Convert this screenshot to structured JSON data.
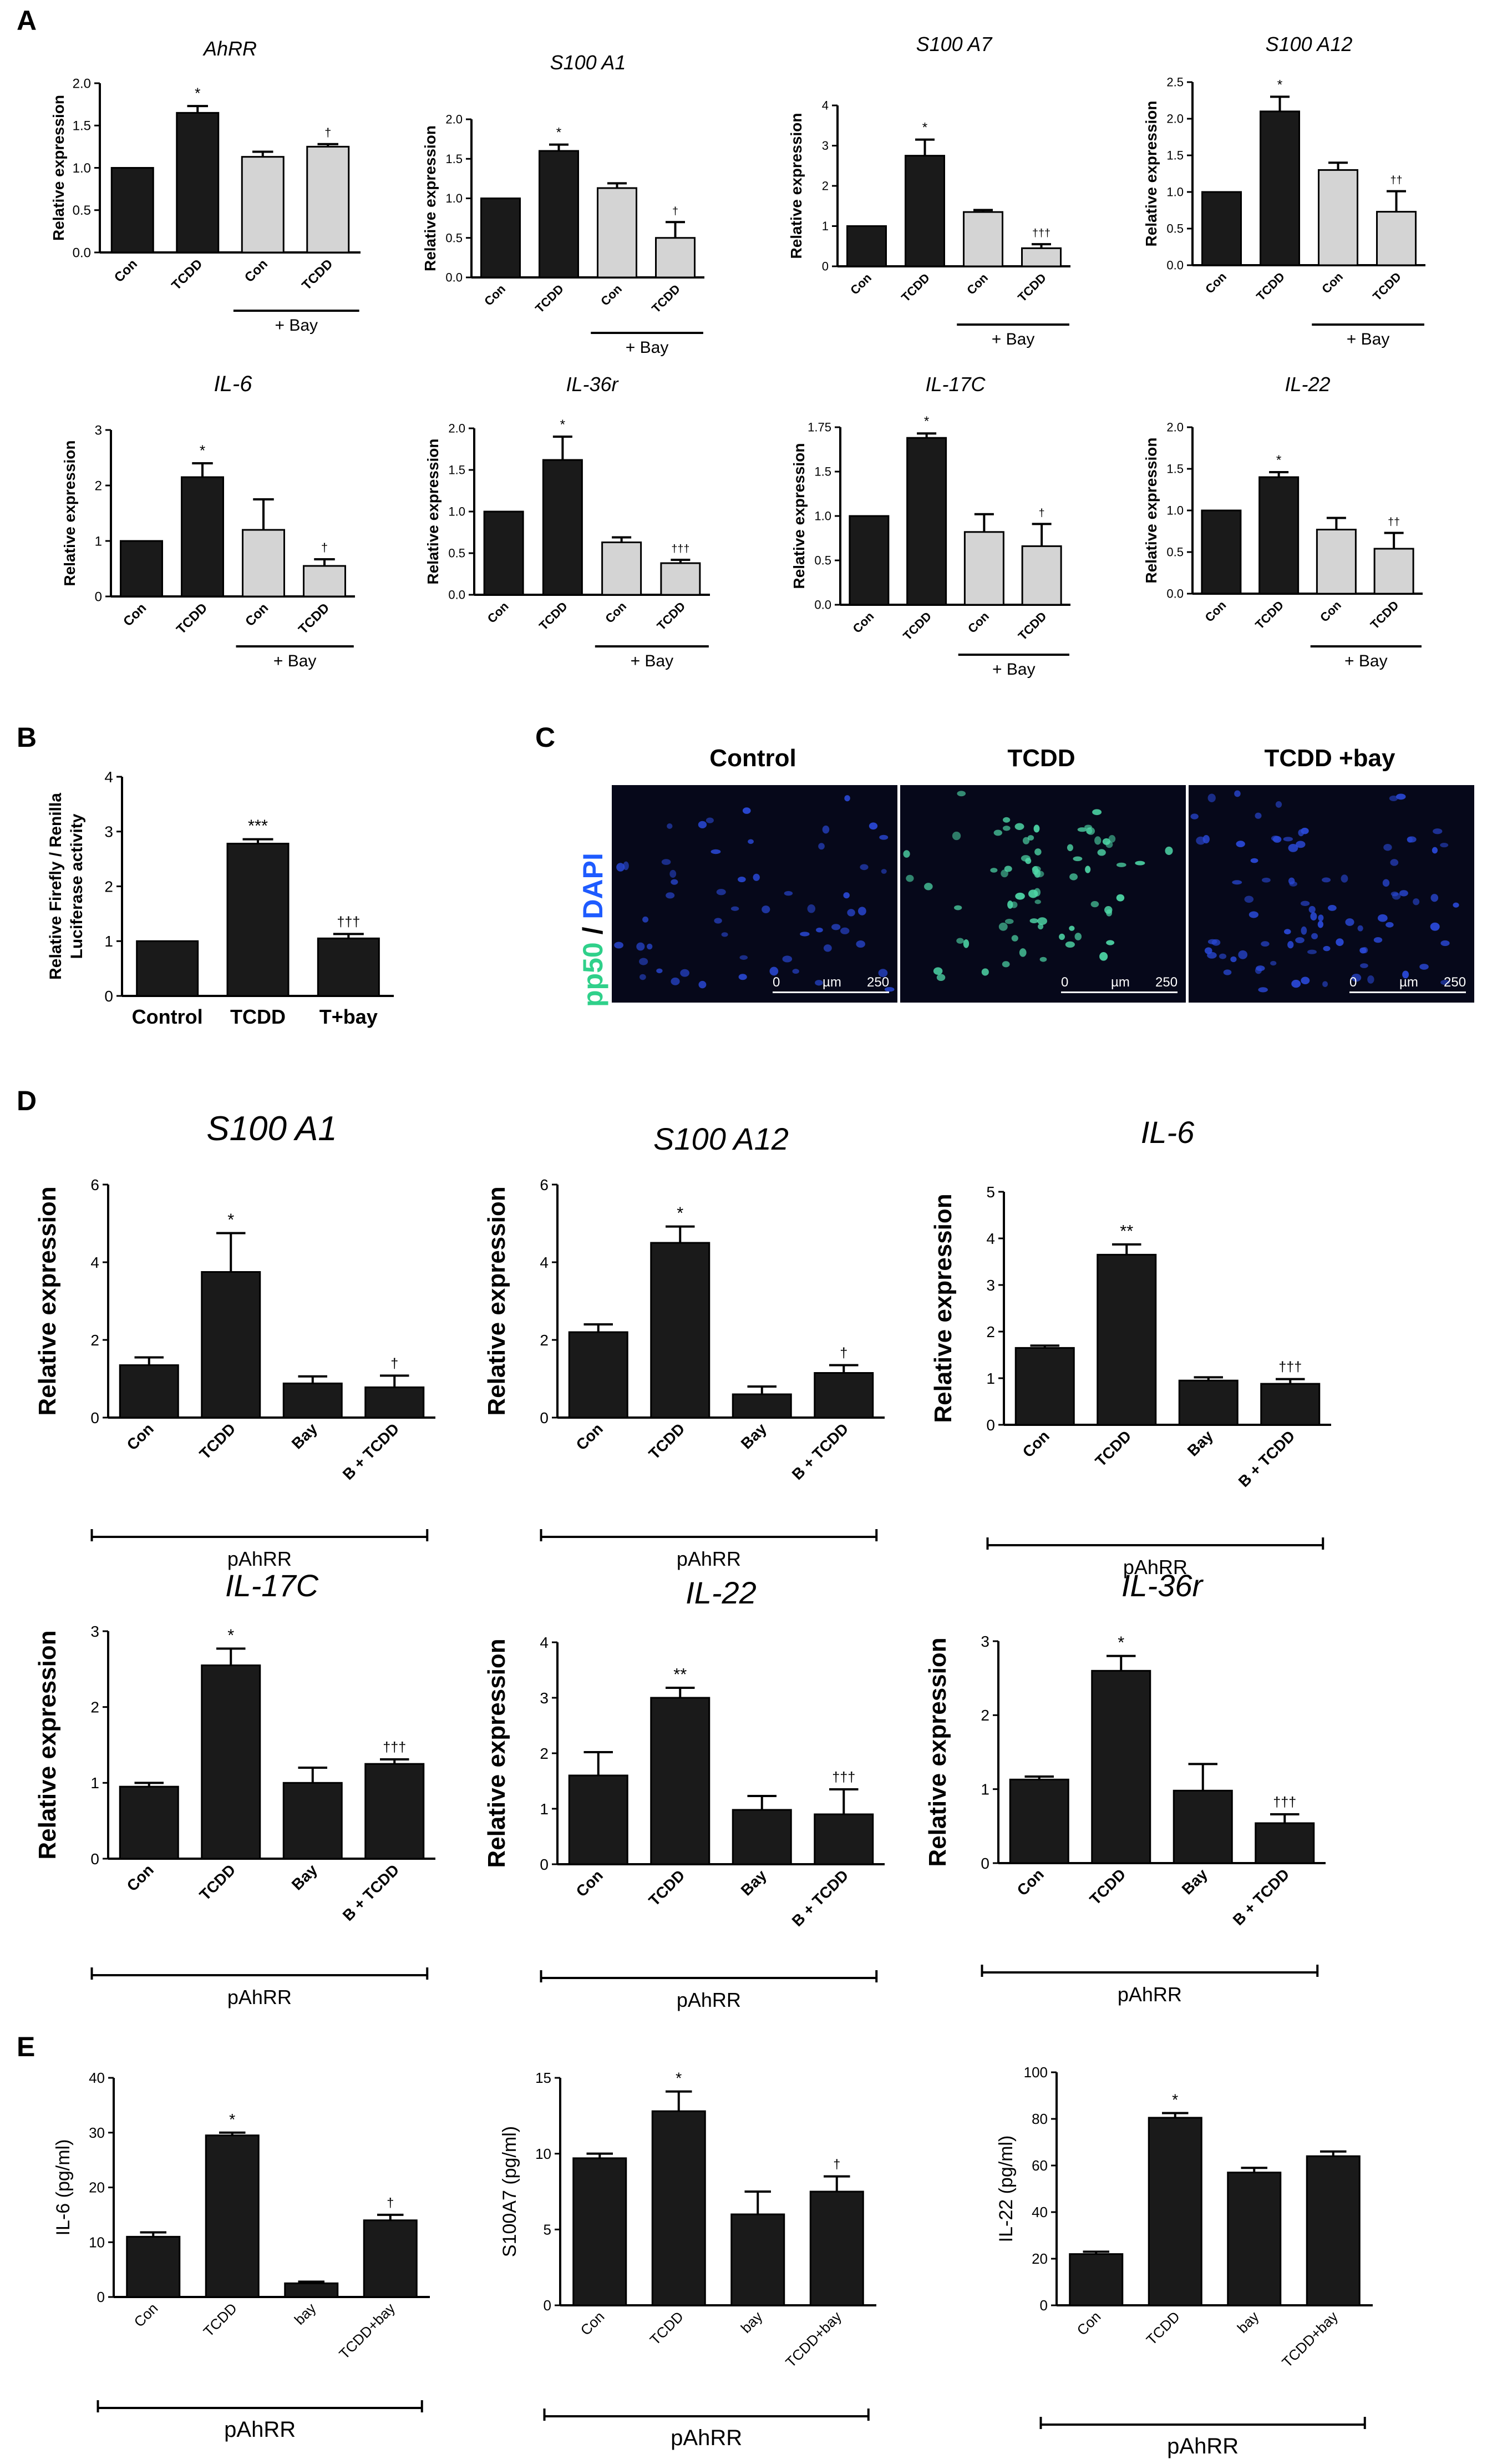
{
  "panel_letters": {
    "a": "A",
    "b": "B",
    "c": "C",
    "d": "D",
    "e": "E"
  },
  "panelC": {
    "ylabel_green": "pp50",
    "ylabel_slash": "/",
    "ylabel_blue": "DAPI",
    "titles": [
      "Control",
      "TCDD",
      "TCDD +bay"
    ],
    "scale": {
      "start": "0",
      "unit": "µm",
      "end": "250"
    }
  },
  "colors": {
    "dark_bar": "#1a1a1a",
    "light_bar": "#d4d4d4",
    "green": "#2fd08a",
    "blue": "#1e5bff"
  },
  "chart_data": [
    {
      "id": "A1",
      "type": "bar",
      "title": "AhRR",
      "title_italic": true,
      "ylabel": "Relative expression",
      "categories": [
        "Con",
        "TCDD",
        "Con",
        "TCDD"
      ],
      "values": [
        1.0,
        1.65,
        1.13,
        1.25
      ],
      "errors": [
        0,
        0.08,
        0.06,
        0.03
      ],
      "fills": [
        "dark",
        "dark",
        "light",
        "light"
      ],
      "annotations": [
        "",
        "*",
        "",
        "†"
      ],
      "ylim": [
        0,
        2
      ],
      "yticks": [
        "0.0",
        "0.5",
        "1.0",
        "1.5",
        "2.0"
      ],
      "group_label": "+ Bay",
      "group_range": [
        2,
        3
      ]
    },
    {
      "id": "A2",
      "type": "bar",
      "title": "S100 A1",
      "title_italic": true,
      "ylabel": "Relative expression",
      "categories": [
        "Con",
        "TCDD",
        "Con",
        "TCDD"
      ],
      "values": [
        1.0,
        1.6,
        1.13,
        0.5
      ],
      "errors": [
        0,
        0.08,
        0.06,
        0.2
      ],
      "fills": [
        "dark",
        "dark",
        "light",
        "light"
      ],
      "annotations": [
        "",
        "*",
        "",
        "†"
      ],
      "ylim": [
        0,
        2
      ],
      "yticks": [
        "0.0",
        "0.5",
        "1.0",
        "1.5",
        "2.0"
      ],
      "group_label": "+ Bay",
      "group_range": [
        2,
        3
      ]
    },
    {
      "id": "A3",
      "type": "bar",
      "title": "S100 A7",
      "title_italic": true,
      "ylabel": "Relative expression",
      "categories": [
        "Con",
        "TCDD",
        "Con",
        "TCDD"
      ],
      "values": [
        1.0,
        2.75,
        1.35,
        0.45
      ],
      "errors": [
        0,
        0.4,
        0.05,
        0.1
      ],
      "fills": [
        "dark",
        "dark",
        "light",
        "light"
      ],
      "annotations": [
        "",
        "*",
        "",
        "†††"
      ],
      "ylim": [
        0,
        4
      ],
      "yticks": [
        "0",
        "1",
        "2",
        "3",
        "4"
      ],
      "group_label": "+ Bay",
      "group_range": [
        2,
        3
      ]
    },
    {
      "id": "A4",
      "type": "bar",
      "title": "S100 A12",
      "title_italic": true,
      "ylabel": "Relative expression",
      "categories": [
        "Con",
        "TCDD",
        "Con",
        "TCDD"
      ],
      "values": [
        1.0,
        2.1,
        1.3,
        0.73
      ],
      "errors": [
        0,
        0.2,
        0.1,
        0.28
      ],
      "fills": [
        "dark",
        "dark",
        "light",
        "light"
      ],
      "annotations": [
        "",
        "*",
        "",
        "††"
      ],
      "ylim": [
        0,
        2.5
      ],
      "yticks": [
        "0.0",
        "0.5",
        "1.0",
        "1.5",
        "2.0",
        "2.5"
      ],
      "group_label": "+ Bay",
      "group_range": [
        2,
        3
      ]
    },
    {
      "id": "A5",
      "type": "bar",
      "title": "IL-6",
      "title_italic": true,
      "ylabel": "Relative expression",
      "categories": [
        "Con",
        "TCDD",
        "Con",
        "TCDD"
      ],
      "values": [
        1.0,
        2.15,
        1.2,
        0.55
      ],
      "errors": [
        0,
        0.25,
        0.55,
        0.12
      ],
      "fills": [
        "dark",
        "dark",
        "light",
        "light"
      ],
      "annotations": [
        "",
        "*",
        "",
        "†"
      ],
      "ylim": [
        0,
        3
      ],
      "yticks": [
        "0",
        "1",
        "2",
        "3"
      ],
      "group_label": "+ Bay",
      "group_range": [
        2,
        3
      ]
    },
    {
      "id": "A6",
      "type": "bar",
      "title": "IL-36r",
      "title_italic": true,
      "ylabel": "Relative expression",
      "categories": [
        "Con",
        "TCDD",
        "Con",
        "TCDD"
      ],
      "values": [
        1.0,
        1.62,
        0.63,
        0.38
      ],
      "errors": [
        0,
        0.28,
        0.06,
        0.04
      ],
      "fills": [
        "dark",
        "dark",
        "light",
        "light"
      ],
      "annotations": [
        "",
        "*",
        "",
        "†††"
      ],
      "ylim": [
        0,
        2
      ],
      "yticks": [
        "0.0",
        "0.5",
        "1.0",
        "1.5",
        "2.0"
      ],
      "group_label": "+ Bay",
      "group_range": [
        2,
        3
      ]
    },
    {
      "id": "A7",
      "type": "bar",
      "title": "IL-17C",
      "title_italic": true,
      "ylabel": "Relative expression",
      "categories": [
        "Con",
        "TCDD",
        "Con",
        "TCDD"
      ],
      "values": [
        1.0,
        1.88,
        0.82,
        0.66
      ],
      "errors": [
        0,
        0.05,
        0.2,
        0.25
      ],
      "fills": [
        "dark",
        "dark",
        "light",
        "light"
      ],
      "annotations": [
        "",
        "*",
        "",
        "†"
      ],
      "ylim": [
        0,
        2.0
      ],
      "yticks": [
        "0.0",
        "0.5",
        "1.0",
        "1.5",
        "2.0"
      ],
      "ytop_label": "1.75",
      "group_label": "+ Bay",
      "group_range": [
        2,
        3
      ]
    },
    {
      "id": "A8",
      "type": "bar",
      "title": "IL-22",
      "title_italic": true,
      "ylabel": "Relative expression",
      "categories": [
        "Con",
        "TCDD",
        "Con",
        "TCDD"
      ],
      "values": [
        1.0,
        1.4,
        0.77,
        0.54
      ],
      "errors": [
        0,
        0.06,
        0.14,
        0.19
      ],
      "fills": [
        "dark",
        "dark",
        "light",
        "light"
      ],
      "annotations": [
        "",
        "*",
        "",
        "††"
      ],
      "ylim": [
        0,
        2
      ],
      "yticks": [
        "0.0",
        "0.5",
        "1.0",
        "1.5",
        "2.0"
      ],
      "group_label": "+ Bay",
      "group_range": [
        2,
        3
      ]
    },
    {
      "id": "B",
      "type": "bar",
      "title": "",
      "title_italic": false,
      "ylabel": "Relative Firefly / Renilla Luciferase activity",
      "categories": [
        "Control",
        "TCDD",
        "T+bay"
      ],
      "values": [
        1.0,
        2.78,
        1.05
      ],
      "errors": [
        0,
        0.08,
        0.08
      ],
      "fills": [
        "dark",
        "dark",
        "dark"
      ],
      "annotations": [
        "",
        "***",
        "†††"
      ],
      "ylim": [
        0,
        4
      ],
      "yticks": [
        "0",
        "1",
        "2",
        "3",
        "4"
      ],
      "group_label": "",
      "group_range": null
    },
    {
      "id": "D1",
      "type": "bar",
      "title": "S100 A1",
      "title_italic": true,
      "ylabel": "Relative expression",
      "categories": [
        "Con",
        "TCDD",
        "Bay",
        "B + TCDD"
      ],
      "values": [
        1.35,
        3.75,
        0.88,
        0.78
      ],
      "errors": [
        0.2,
        1.0,
        0.18,
        0.3
      ],
      "fills": [
        "dark",
        "dark",
        "dark",
        "dark"
      ],
      "annotations": [
        "",
        "*",
        "",
        "†"
      ],
      "ylim": [
        0,
        6
      ],
      "yticks": [
        "0",
        "2",
        "4",
        "6"
      ],
      "group_label": "pAhRR",
      "group_range": [
        0,
        3
      ]
    },
    {
      "id": "D2",
      "type": "bar",
      "title": "S100 A12",
      "title_italic": true,
      "ylabel": "Relative expression",
      "categories": [
        "Con",
        "TCDD",
        "Bay",
        "B + TCDD"
      ],
      "values": [
        2.2,
        4.5,
        0.6,
        1.15
      ],
      "errors": [
        0.2,
        0.42,
        0.2,
        0.2
      ],
      "fills": [
        "dark",
        "dark",
        "dark",
        "dark"
      ],
      "annotations": [
        "",
        "*",
        "",
        "†"
      ],
      "ylim": [
        0,
        6
      ],
      "yticks": [
        "0",
        "2",
        "4",
        "6"
      ],
      "group_label": "pAhRR",
      "group_range": [
        0,
        3
      ]
    },
    {
      "id": "D3",
      "type": "bar",
      "title": "IL-6",
      "title_italic": true,
      "ylabel": "Relative expression",
      "categories": [
        "Con",
        "TCDD",
        "Bay",
        "B + TCDD"
      ],
      "values": [
        1.65,
        3.65,
        0.95,
        0.88
      ],
      "errors": [
        0.05,
        0.22,
        0.07,
        0.1
      ],
      "fills": [
        "dark",
        "dark",
        "dark",
        "dark"
      ],
      "annotations": [
        "",
        "**",
        "",
        "†††"
      ],
      "ylim": [
        0,
        5
      ],
      "yticks": [
        "0",
        "1",
        "2",
        "3",
        "4",
        "5"
      ],
      "group_label": "pAhRR",
      "group_range": [
        0,
        3
      ]
    },
    {
      "id": "D4",
      "type": "bar",
      "title": "IL-17C",
      "title_italic": true,
      "ylabel": "Relative expression",
      "categories": [
        "Con",
        "TCDD",
        "Bay",
        "B + TCDD"
      ],
      "values": [
        0.95,
        2.55,
        1.0,
        1.25
      ],
      "errors": [
        0.05,
        0.22,
        0.2,
        0.06
      ],
      "fills": [
        "dark",
        "dark",
        "dark",
        "dark"
      ],
      "annotations": [
        "",
        "*",
        "",
        "†††"
      ],
      "ylim": [
        0,
        3
      ],
      "yticks": [
        "0",
        "1",
        "2",
        "3"
      ],
      "group_label": "pAhRR",
      "group_range": [
        0,
        3
      ]
    },
    {
      "id": "D5",
      "type": "bar",
      "title": "IL-22",
      "title_italic": true,
      "ylabel": "Relative expression",
      "categories": [
        "Con",
        "TCDD",
        "Bay",
        "B + TCDD"
      ],
      "values": [
        1.6,
        3.0,
        0.98,
        0.9
      ],
      "errors": [
        0.42,
        0.18,
        0.25,
        0.45
      ],
      "fills": [
        "dark",
        "dark",
        "dark",
        "dark"
      ],
      "annotations": [
        "",
        "**",
        "",
        "†††"
      ],
      "ylim": [
        0,
        4
      ],
      "yticks": [
        "0",
        "1",
        "2",
        "3",
        "4"
      ],
      "group_label": "pAhRR",
      "group_range": [
        0,
        3
      ]
    },
    {
      "id": "D6",
      "type": "bar",
      "title": "IL-36r",
      "title_italic": true,
      "ylabel": "Relative expression",
      "categories": [
        "Con",
        "TCDD",
        "Bay",
        "B + TCDD"
      ],
      "values": [
        1.13,
        2.6,
        0.98,
        0.54
      ],
      "errors": [
        0.04,
        0.2,
        0.36,
        0.12
      ],
      "fills": [
        "dark",
        "dark",
        "dark",
        "dark"
      ],
      "annotations": [
        "",
        "*",
        "",
        "†††"
      ],
      "ylim": [
        0,
        3
      ],
      "yticks": [
        "0",
        "1",
        "2",
        "3"
      ],
      "group_label": "pAhRR",
      "group_range": [
        0,
        3
      ]
    },
    {
      "id": "E1",
      "type": "bar",
      "title": "",
      "title_italic": false,
      "ylabel": "IL-6 (pg/ml)",
      "categories": [
        "Con",
        "TCDD",
        "bay",
        "TCDD+bay"
      ],
      "values": [
        11,
        29.5,
        2.5,
        14
      ],
      "errors": [
        0.8,
        0.5,
        0.3,
        1
      ],
      "fills": [
        "dark",
        "dark",
        "dark",
        "dark"
      ],
      "annotations": [
        "",
        "*",
        "",
        "†"
      ],
      "ylim": [
        0,
        40
      ],
      "yticks": [
        "0",
        "10",
        "20",
        "30",
        "40"
      ],
      "group_label": "pAhRR",
      "group_range": [
        0,
        3
      ]
    },
    {
      "id": "E2",
      "type": "bar",
      "title": "",
      "title_italic": false,
      "ylabel": "S100A7 (pg/ml)",
      "categories": [
        "Con",
        "TCDD",
        "bay",
        "TCDD+bay"
      ],
      "values": [
        9.7,
        12.8,
        6.0,
        7.5
      ],
      "errors": [
        0.3,
        1.3,
        1.5,
        1.0
      ],
      "fills": [
        "dark",
        "dark",
        "dark",
        "dark"
      ],
      "annotations": [
        "",
        "*",
        "",
        "†"
      ],
      "ylim": [
        0,
        15
      ],
      "yticks": [
        "0",
        "5",
        "10",
        "15"
      ],
      "group_label": "pAhRR",
      "group_range": [
        0,
        3
      ]
    },
    {
      "id": "E3",
      "type": "bar",
      "title": "",
      "title_italic": false,
      "ylabel": "IL-22 (pg/ml)",
      "categories": [
        "Con",
        "TCDD",
        "bay",
        "TCDD+bay"
      ],
      "values": [
        22,
        80.5,
        57,
        64
      ],
      "errors": [
        1,
        2,
        2,
        2
      ],
      "fills": [
        "dark",
        "dark",
        "dark",
        "dark"
      ],
      "annotations": [
        "",
        "*",
        "",
        ""
      ],
      "ylim": [
        0,
        100
      ],
      "yticks": [
        "0",
        "20",
        "40",
        "60",
        "80",
        "100"
      ],
      "group_label": "pAhRR",
      "group_range": [
        0,
        3
      ]
    }
  ]
}
